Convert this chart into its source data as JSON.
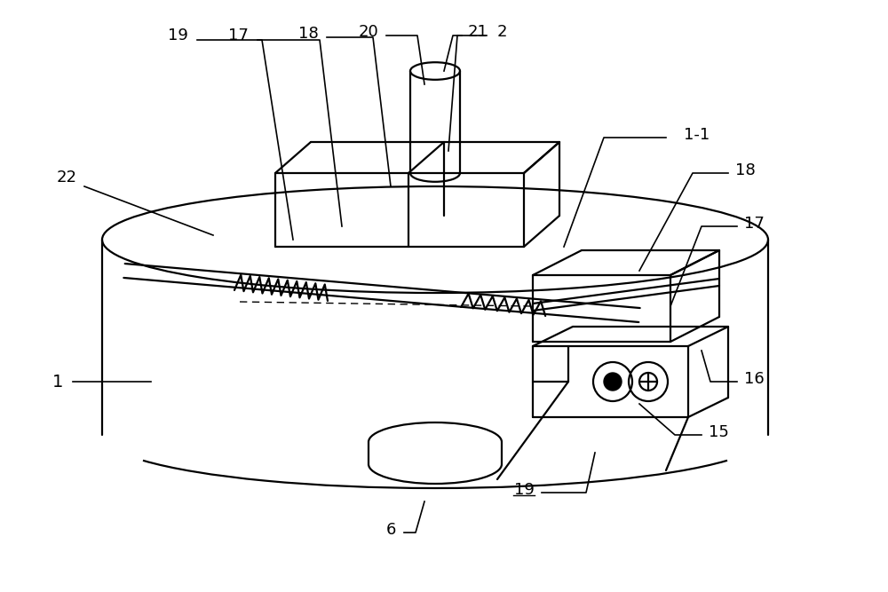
{
  "bg_color": "#ffffff",
  "line_color": "#000000",
  "fig_width": 10.0,
  "fig_height": 6.67,
  "label_fontsize": 13,
  "lw": 1.6
}
